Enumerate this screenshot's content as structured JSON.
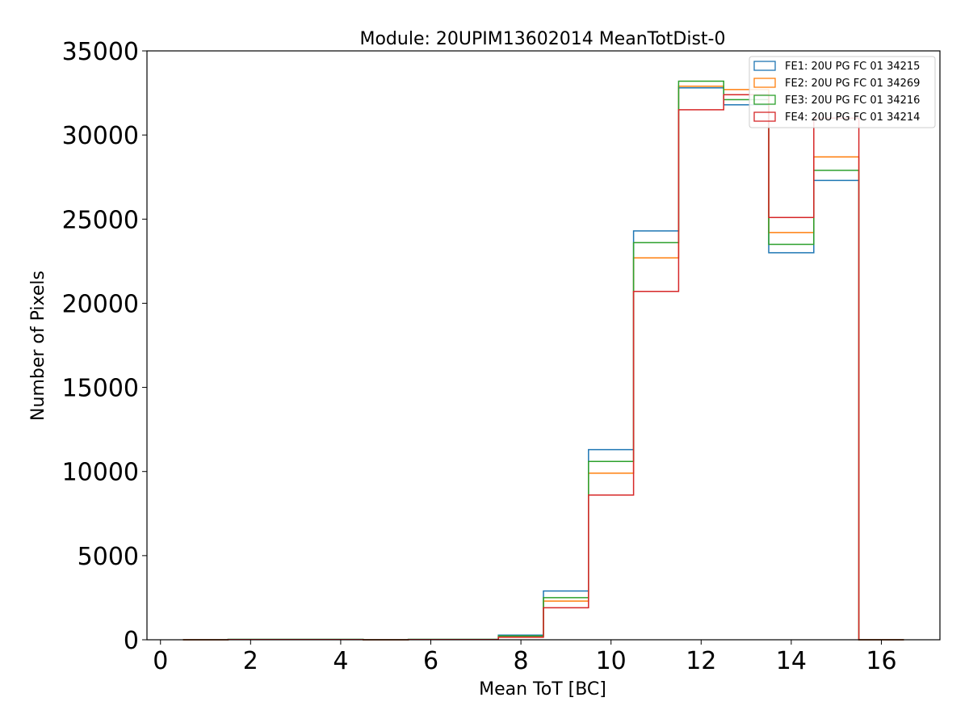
{
  "chart_data": {
    "type": "step-histogram",
    "title": "Module: 20UPIM13602014 MeanTotDist-0",
    "xlabel": "Mean ToT [BC]",
    "ylabel": "Number of Pixels",
    "xlim": [
      -0.3,
      17.3
    ],
    "ylim": [
      0,
      35000
    ],
    "xticks": [
      0,
      2,
      4,
      6,
      8,
      10,
      12,
      14,
      16
    ],
    "yticks": [
      0,
      5000,
      10000,
      15000,
      20000,
      25000,
      30000,
      35000
    ],
    "grid": false,
    "legend_position": "top-right",
    "bin_edges": [
      0.5,
      1.5,
      2.5,
      3.5,
      4.5,
      5.5,
      6.5,
      7.5,
      8.5,
      9.5,
      10.5,
      11.5,
      12.5,
      13.5,
      14.5,
      15.5,
      16.5
    ],
    "series": [
      {
        "name": "FE1: 20U PG FC 01 34215",
        "color": "#1f77b4",
        "values": [
          0,
          20,
          20,
          20,
          0,
          20,
          20,
          280,
          2900,
          11300,
          24300,
          32800,
          31800,
          23000,
          27300,
          0
        ]
      },
      {
        "name": "FE2: 20U PG FC 01 34269",
        "color": "#ff7f0e",
        "values": [
          0,
          15,
          15,
          15,
          0,
          15,
          15,
          200,
          2300,
          9900,
          22700,
          32900,
          32700,
          24200,
          28700,
          0
        ]
      },
      {
        "name": "FE3: 20U PG FC 01 34216",
        "color": "#2ca02c",
        "values": [
          0,
          25,
          25,
          25,
          0,
          25,
          25,
          230,
          2500,
          10600,
          23600,
          33200,
          32100,
          23500,
          27900,
          0
        ]
      },
      {
        "name": "FE4: 20U PG FC 01 34214",
        "color": "#d62728",
        "values": [
          0,
          15,
          15,
          15,
          0,
          15,
          15,
          150,
          1900,
          8600,
          20700,
          31500,
          32400,
          25100,
          31000,
          0
        ]
      }
    ]
  }
}
